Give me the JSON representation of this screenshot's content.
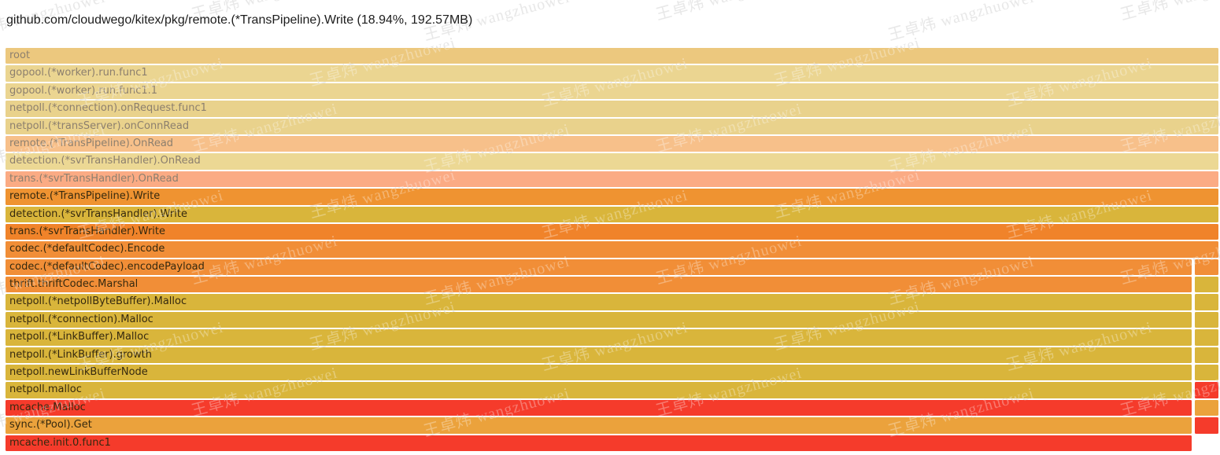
{
  "header": {
    "title": "github.com/cloudwego/kitex/pkg/remote.(*TransPipeline).Write (18.94%, 192.57MB)"
  },
  "watermark": {
    "text": "王卓炜 wangzhuowei"
  },
  "colors": {
    "background": "#ffffff",
    "text_dark": "#35290f",
    "text_dim": "#8c7f6e",
    "title_text": "#1c1c1c",
    "gold": "#ecc87e",
    "pale_khaki": "#ebd591",
    "peach": "#f7c08a",
    "salmon": "#fbab84",
    "orange": "#f18e37",
    "deep_orange": "#f0832a",
    "mustard": "#d9b53b",
    "red": "#f53b2b",
    "amber": "#eba23c"
  },
  "chart_data": {
    "type": "bar",
    "variant": "flame-graph-icicle",
    "title": "github.com/cloudwego/kitex/pkg/remote.(*TransPipeline).Write (18.94%, 192.57MB)",
    "selected_function": "github.com/cloudwego/kitex/pkg/remote.(*TransPipeline).Write",
    "selected_percent": "18.94%",
    "selected_value": "192.57MB",
    "grid": false,
    "legend_position": "none",
    "note": "Each row is one stack frame spanning nearly full width; rows 13-22 also have a narrow second call-path frame at the far right edge. Rows 1-8 are dimmed (not matching selected symbol).",
    "frames": [
      {
        "label": "root",
        "color": "#ecc87e",
        "dim": true,
        "split": false,
        "side": null
      },
      {
        "label": "gopool.(*worker).run.func1",
        "color": "#ebd591",
        "dim": true,
        "split": false,
        "side": null
      },
      {
        "label": "gopool.(*worker).run.func1.1",
        "color": "#ebd591",
        "dim": true,
        "split": false,
        "side": null
      },
      {
        "label": "netpoll.(*connection).onRequest.func1",
        "color": "#e9d28c",
        "dim": true,
        "split": false,
        "side": null
      },
      {
        "label": "netpoll.(*transServer).onConnRead",
        "color": "#e9d28c",
        "dim": true,
        "split": false,
        "side": null
      },
      {
        "label": "remote.(*TransPipeline).OnRead",
        "color": "#f7c08a",
        "dim": true,
        "split": false,
        "side": null
      },
      {
        "label": "detection.(*svrTransHandler).OnRead",
        "color": "#ecd894",
        "dim": true,
        "split": false,
        "side": null
      },
      {
        "label": "trans.(*svrTransHandler).OnRead",
        "color": "#fbab84",
        "dim": true,
        "split": false,
        "side": null
      },
      {
        "label": "remote.(*TransPipeline).Write",
        "color": "#ef9331",
        "dim": false,
        "split": false,
        "side": null
      },
      {
        "label": "detection.(*svrTransHandler).Write",
        "color": "#d9b53b",
        "dim": false,
        "split": false,
        "side": null
      },
      {
        "label": "trans.(*svrTransHandler).Write",
        "color": "#f0832a",
        "dim": false,
        "split": false,
        "side": null
      },
      {
        "label": "codec.(*defaultCodec).Encode",
        "color": "#f18e37",
        "dim": false,
        "split": false,
        "side": null
      },
      {
        "label": "codec.(*defaultCodec).encodePayload",
        "color": "#f18e37",
        "dim": false,
        "split": true,
        "side": "#f18e37"
      },
      {
        "label": "thrift.thriftCodec.Marshal",
        "color": "#f18e37",
        "dim": false,
        "split": true,
        "side": "#d9b53b"
      },
      {
        "label": "netpoll.(*netpollByteBuffer).Malloc",
        "color": "#d9b53b",
        "dim": false,
        "split": true,
        "side": "#d9b53b"
      },
      {
        "label": "netpoll.(*connection).Malloc",
        "color": "#d9b53b",
        "dim": false,
        "split": true,
        "side": "#d9b53b"
      },
      {
        "label": "netpoll.(*LinkBuffer).Malloc",
        "color": "#d9b53b",
        "dim": false,
        "split": true,
        "side": "#d9b53b"
      },
      {
        "label": "netpoll.(*LinkBuffer).growth",
        "color": "#d9b53b",
        "dim": false,
        "split": true,
        "side": "#d9b53b"
      },
      {
        "label": "netpoll.newLinkBufferNode",
        "color": "#d9b53b",
        "dim": false,
        "split": true,
        "side": "#d9b53b"
      },
      {
        "label": "netpoll.malloc",
        "color": "#d9b53b",
        "dim": false,
        "split": true,
        "side": "#f53b2b"
      },
      {
        "label": "mcache.Malloc",
        "color": "#f53b2b",
        "dim": false,
        "split": true,
        "side": "#eba23c"
      },
      {
        "label": "sync.(*Pool).Get",
        "color": "#eba23c",
        "dim": false,
        "split": true,
        "side": "#f53b2b"
      },
      {
        "label": "mcache.init.0.func1",
        "color": "#f53b2b",
        "dim": false,
        "split": true,
        "side": null
      }
    ]
  }
}
